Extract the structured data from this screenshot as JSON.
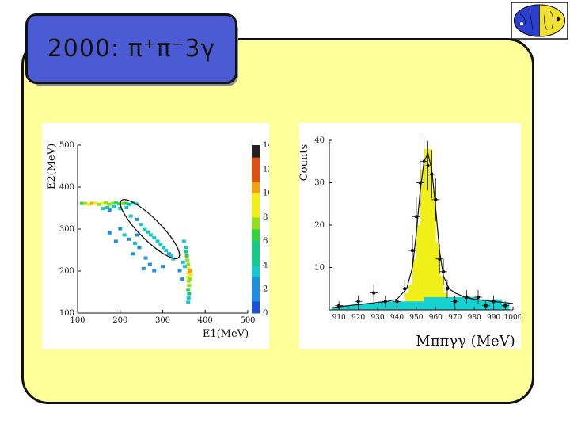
{
  "slide": {
    "title": "2000: π⁺π⁻3γ",
    "logo_icon": "detector-logo-icon",
    "colors": {
      "panel": "#ffff9a",
      "title_box": "#4b5bd4",
      "ellipse": "#111111"
    }
  },
  "chart_data": [
    {
      "type": "heatmap",
      "title": "",
      "xlabel": "E1(MeV)",
      "ylabel": "E2(MeV)",
      "xlim": [
        100,
        500
      ],
      "ylim": [
        100,
        500
      ],
      "xticks": [
        100,
        200,
        300,
        400,
        500
      ],
      "yticks": [
        100,
        200,
        300,
        400,
        500
      ],
      "colorbar": {
        "range": [
          0,
          14
        ],
        "ticks": [
          0,
          2,
          4,
          6,
          8,
          10,
          12,
          14
        ]
      },
      "grid": false,
      "cells": [
        [
          110,
          360,
          6
        ],
        [
          118,
          360,
          8
        ],
        [
          126,
          358,
          9
        ],
        [
          134,
          360,
          10
        ],
        [
          142,
          361,
          9
        ],
        [
          150,
          358,
          7
        ],
        [
          158,
          360,
          9
        ],
        [
          166,
          362,
          8
        ],
        [
          174,
          358,
          7
        ],
        [
          182,
          360,
          8
        ],
        [
          190,
          361,
          6
        ],
        [
          198,
          359,
          5
        ],
        [
          206,
          360,
          7
        ],
        [
          214,
          360,
          6
        ],
        [
          222,
          358,
          5
        ],
        [
          230,
          361,
          4
        ],
        [
          238,
          359,
          3
        ],
        [
          160,
          348,
          4
        ],
        [
          170,
          350,
          5
        ],
        [
          185,
          352,
          3
        ],
        [
          200,
          348,
          4
        ],
        [
          215,
          350,
          3
        ],
        [
          175,
          344,
          2
        ],
        [
          225,
          330,
          3
        ],
        [
          240,
          322,
          2
        ],
        [
          250,
          310,
          4
        ],
        [
          258,
          298,
          3
        ],
        [
          265,
          292,
          5
        ],
        [
          272,
          285,
          3
        ],
        [
          280,
          278,
          4
        ],
        [
          288,
          270,
          3
        ],
        [
          295,
          262,
          4
        ],
        [
          302,
          255,
          3
        ],
        [
          308,
          248,
          3
        ],
        [
          315,
          240,
          2
        ],
        [
          320,
          235,
          4
        ],
        [
          325,
          228,
          3
        ],
        [
          200,
          300,
          2
        ],
        [
          210,
          285,
          3
        ],
        [
          220,
          275,
          2
        ],
        [
          235,
          265,
          3
        ],
        [
          245,
          255,
          2
        ],
        [
          190,
          270,
          2
        ],
        [
          175,
          290,
          2
        ],
        [
          230,
          240,
          2
        ],
        [
          260,
          230,
          2
        ],
        [
          270,
          215,
          2
        ],
        [
          255,
          205,
          2
        ],
        [
          280,
          200,
          2
        ],
        [
          240,
          285,
          2
        ],
        [
          300,
          210,
          2
        ],
        [
          350,
          270,
          3
        ],
        [
          355,
          255,
          4
        ],
        [
          355,
          245,
          5
        ],
        [
          357,
          235,
          6
        ],
        [
          358,
          225,
          7
        ],
        [
          360,
          215,
          8
        ],
        [
          361,
          205,
          9
        ],
        [
          362,
          195,
          10
        ],
        [
          360,
          185,
          9
        ],
        [
          361,
          175,
          8
        ],
        [
          362,
          165,
          7
        ],
        [
          360,
          155,
          6
        ],
        [
          362,
          145,
          5
        ],
        [
          361,
          135,
          4
        ],
        [
          360,
          125,
          3
        ],
        [
          365,
          200,
          11
        ],
        [
          366,
          190,
          9
        ],
        [
          364,
          180,
          8
        ],
        [
          352,
          210,
          4
        ],
        [
          348,
          220,
          3
        ],
        [
          340,
          200,
          2
        ],
        [
          345,
          180,
          2
        ]
      ],
      "ellipse": {
        "center": [
          270,
          300
        ],
        "semi_major": 95,
        "semi_minor": 25,
        "angle_deg": -45
      }
    },
    {
      "type": "bar",
      "title": "",
      "xlabel": "Mππγγ (MeV)",
      "ylabel": "Counts",
      "xlim": [
        905,
        1000
      ],
      "ylim": [
        0,
        40
      ],
      "xticks": [
        910,
        920,
        930,
        940,
        950,
        960,
        970,
        980,
        990,
        1000
      ],
      "yticks": [
        10,
        20,
        30,
        40
      ],
      "grid": false,
      "series": [
        {
          "kind": "histogram",
          "color": "#f0f018",
          "bins": [
            940,
            942,
            944,
            946,
            948,
            950,
            952,
            954,
            956,
            958,
            960,
            962,
            964,
            966,
            968,
            970,
            972
          ],
          "values": [
            1,
            2,
            4,
            6,
            12,
            20,
            33,
            38,
            38,
            28,
            16,
            8,
            4,
            3,
            2,
            1,
            1
          ]
        },
        {
          "kind": "histogram",
          "color": "#14d2d2",
          "bins": [
            906,
            910,
            914,
            918,
            922,
            926,
            930,
            934,
            938,
            942,
            946,
            950,
            954,
            958,
            962,
            966,
            970,
            974,
            978,
            982,
            986,
            990,
            994
          ],
          "values": [
            0.5,
            1,
            1,
            1.5,
            1.5,
            1.5,
            2,
            2,
            2,
            2,
            2,
            2,
            3,
            3,
            3,
            3,
            3,
            3,
            3,
            2.5,
            2,
            2.5,
            1.5
          ]
        },
        {
          "kind": "points",
          "color": "#111111",
          "x": [
            910,
            920,
            928,
            934,
            940,
            944,
            948,
            950,
            952,
            954,
            956,
            958,
            960,
            962,
            964,
            966,
            970,
            976,
            982,
            986,
            990,
            996
          ],
          "y": [
            1,
            2,
            4,
            2,
            2,
            5,
            14,
            22,
            30,
            35,
            34,
            32,
            26,
            12,
            9,
            5,
            2,
            3,
            3,
            1,
            2,
            1
          ],
          "err": [
            1,
            1.4,
            2,
            1.4,
            1.4,
            2.2,
            3.7,
            4.7,
            5.5,
            5.9,
            5.8,
            5.7,
            5.1,
            3.5,
            3,
            2.2,
            1.4,
            1.7,
            1.7,
            1,
            1.4,
            1
          ]
        },
        {
          "kind": "fit",
          "color": "#111111",
          "x": [
            906,
            915,
            925,
            935,
            940,
            945,
            948,
            950,
            952,
            954,
            956,
            958,
            960,
            962,
            964,
            967,
            970,
            975,
            980,
            990,
            1000
          ],
          "y": [
            0.5,
            1,
            1.5,
            2,
            2.5,
            5,
            10,
            18,
            28,
            35,
            37,
            33,
            24,
            14,
            8,
            5,
            4,
            3,
            2.5,
            2,
            1.5
          ]
        }
      ]
    }
  ]
}
